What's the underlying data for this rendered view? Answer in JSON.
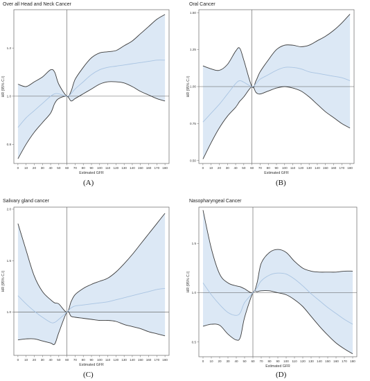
{
  "chart_data": [
    {
      "type": "line",
      "panel_label": "(A)",
      "title": "Over all Head and Neck Cancer",
      "xlabel": "Estimated GFR",
      "ylabel": "HR (95% C.I)",
      "xlim": [
        -5,
        185
      ],
      "ylim": [
        0.72,
        1.36
      ],
      "x_ticks": [
        0,
        10,
        20,
        30,
        40,
        50,
        60,
        70,
        80,
        90,
        100,
        110,
        120,
        130,
        140,
        150,
        160,
        170,
        180
      ],
      "y_ticks": [
        0.8,
        1.0,
        1.2
      ],
      "y_tick_labels": [
        "0.8",
        "1.0",
        "1.2"
      ],
      "reference_hr": 1.0,
      "reference_gfr": 60,
      "grid": false,
      "x": [
        0,
        10,
        20,
        30,
        40,
        45,
        50,
        60,
        65,
        70,
        80,
        90,
        100,
        110,
        120,
        130,
        140,
        150,
        160,
        170,
        180
      ],
      "hr": [
        0.87,
        0.91,
        0.94,
        0.97,
        1.0,
        1.01,
        1.01,
        1.0,
        1.01,
        1.03,
        1.06,
        1.09,
        1.11,
        1.12,
        1.125,
        1.13,
        1.135,
        1.14,
        1.145,
        1.15,
        1.15
      ],
      "upper": [
        1.05,
        1.04,
        1.06,
        1.08,
        1.11,
        1.1,
        1.05,
        1.0,
        1.02,
        1.07,
        1.12,
        1.16,
        1.18,
        1.185,
        1.19,
        1.21,
        1.23,
        1.26,
        1.29,
        1.32,
        1.34
      ],
      "lower": [
        0.74,
        0.8,
        0.85,
        0.89,
        0.93,
        0.97,
        0.99,
        1.0,
        0.98,
        0.99,
        1.01,
        1.03,
        1.05,
        1.06,
        1.06,
        1.055,
        1.04,
        1.02,
        1.005,
        0.99,
        0.98
      ]
    },
    {
      "type": "line",
      "panel_label": "(B)",
      "title": "Oral Cancer",
      "xlabel": "Estimated GFR",
      "ylabel": "HR (95% C.I)",
      "xlim": [
        -5,
        185
      ],
      "ylim": [
        0.48,
        1.52
      ],
      "x_ticks": [
        0,
        10,
        20,
        30,
        40,
        50,
        60,
        70,
        80,
        90,
        100,
        110,
        120,
        130,
        140,
        150,
        160,
        170,
        180
      ],
      "y_ticks": [
        0.5,
        0.75,
        1.0,
        1.25,
        1.5
      ],
      "y_tick_labels": [
        "0.50",
        "0.75",
        "1.00",
        "1.25",
        "1.50"
      ],
      "reference_hr": 1.0,
      "reference_gfr": 60,
      "grid": false,
      "x": [
        0,
        10,
        20,
        30,
        40,
        45,
        50,
        60,
        65,
        70,
        80,
        90,
        100,
        110,
        120,
        130,
        140,
        150,
        160,
        170,
        180
      ],
      "hr": [
        0.76,
        0.82,
        0.88,
        0.95,
        1.02,
        1.04,
        1.03,
        1.0,
        1.02,
        1.05,
        1.08,
        1.11,
        1.13,
        1.13,
        1.12,
        1.1,
        1.09,
        1.08,
        1.07,
        1.06,
        1.04
      ],
      "upper": [
        1.14,
        1.12,
        1.11,
        1.15,
        1.24,
        1.26,
        1.18,
        1.0,
        1.04,
        1.1,
        1.18,
        1.25,
        1.28,
        1.28,
        1.27,
        1.28,
        1.31,
        1.34,
        1.38,
        1.43,
        1.49
      ],
      "lower": [
        0.51,
        0.62,
        0.72,
        0.8,
        0.86,
        0.9,
        0.93,
        1.0,
        0.96,
        0.95,
        0.97,
        0.99,
        1.0,
        0.99,
        0.97,
        0.93,
        0.88,
        0.83,
        0.79,
        0.75,
        0.72
      ]
    },
    {
      "type": "line",
      "panel_label": "(C)",
      "title": "Salivary gland cancer",
      "xlabel": "Estimated GFR",
      "ylabel": "HR (95% C.I)",
      "xlim": [
        -5,
        185
      ],
      "ylim": [
        0.58,
        2.02
      ],
      "x_ticks": [
        0,
        10,
        20,
        30,
        40,
        50,
        60,
        70,
        80,
        90,
        100,
        110,
        120,
        130,
        140,
        150,
        160,
        170,
        180
      ],
      "y_ticks": [
        1.0,
        1.5,
        2.0
      ],
      "y_tick_labels": [
        "1.0",
        "1.5",
        "2.0"
      ],
      "reference_hr": 1.0,
      "reference_gfr": 60,
      "grid": false,
      "x": [
        0,
        10,
        20,
        30,
        40,
        45,
        50,
        60,
        65,
        70,
        80,
        90,
        100,
        110,
        120,
        130,
        140,
        150,
        160,
        170,
        180
      ],
      "hr": [
        1.16,
        1.08,
        1.01,
        0.95,
        0.9,
        0.9,
        0.93,
        1.0,
        1.04,
        1.06,
        1.07,
        1.08,
        1.09,
        1.1,
        1.12,
        1.14,
        1.16,
        1.18,
        1.2,
        1.22,
        1.23
      ],
      "upper": [
        1.86,
        1.6,
        1.35,
        1.2,
        1.12,
        1.09,
        1.08,
        1.0,
        1.1,
        1.17,
        1.23,
        1.27,
        1.3,
        1.33,
        1.39,
        1.47,
        1.56,
        1.66,
        1.76,
        1.86,
        1.96
      ],
      "lower": [
        0.73,
        0.74,
        0.74,
        0.72,
        0.7,
        0.69,
        0.8,
        1.0,
        0.96,
        0.95,
        0.94,
        0.93,
        0.92,
        0.92,
        0.91,
        0.88,
        0.86,
        0.84,
        0.81,
        0.79,
        0.77
      ]
    },
    {
      "type": "line",
      "panel_label": "(D)",
      "title": "Nasopharyngeal Cancer",
      "xlabel": "Estimated GFR",
      "ylabel": "HR (95% C.I)",
      "xlim": [
        -5,
        185
      ],
      "ylim": [
        0.35,
        1.87
      ],
      "x_ticks": [
        0,
        10,
        20,
        30,
        40,
        50,
        60,
        70,
        80,
        90,
        100,
        110,
        120,
        130,
        140,
        150,
        160,
        170,
        180
      ],
      "y_ticks": [
        0.5,
        1.0,
        1.5
      ],
      "y_tick_labels": [
        "0.5",
        "1.0",
        "1.5"
      ],
      "reference_hr": 1.0,
      "reference_gfr": 60,
      "grid": false,
      "x": [
        0,
        10,
        20,
        30,
        40,
        45,
        50,
        60,
        65,
        70,
        80,
        90,
        100,
        110,
        120,
        130,
        140,
        150,
        160,
        170,
        180
      ],
      "hr": [
        1.1,
        0.98,
        0.88,
        0.8,
        0.77,
        0.8,
        0.9,
        1.0,
        1.05,
        1.12,
        1.18,
        1.2,
        1.19,
        1.14,
        1.07,
        0.99,
        0.92,
        0.85,
        0.79,
        0.73,
        0.68
      ],
      "upper": [
        1.84,
        1.45,
        1.19,
        1.1,
        1.07,
        1.06,
        1.04,
        1.0,
        1.1,
        1.3,
        1.41,
        1.44,
        1.41,
        1.32,
        1.25,
        1.22,
        1.21,
        1.21,
        1.21,
        1.22,
        1.22
      ],
      "lower": [
        0.66,
        0.68,
        0.67,
        0.58,
        0.52,
        0.55,
        0.75,
        1.0,
        1.01,
        1.02,
        1.02,
        1.0,
        0.98,
        0.93,
        0.86,
        0.76,
        0.66,
        0.57,
        0.49,
        0.43,
        0.38
      ]
    }
  ],
  "colors": {
    "band_fill": "#dce8f5",
    "band_edge": "#3a3a3a",
    "hr_line": "#a9c4e2",
    "reference": "#555555",
    "frame": "#666666"
  }
}
